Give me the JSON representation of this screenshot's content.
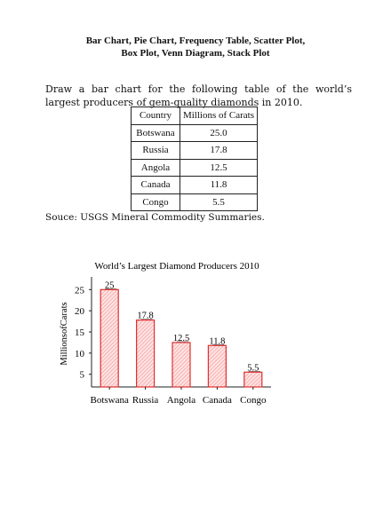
{
  "document": {
    "title_line1": "Bar Chart, Pie Chart, Frequency Table, Scatter Plot,",
    "title_line2": "Box Plot, Venn Diagram, Stack Plot",
    "instruction": "Draw a bar chart for the following table of the world’s largest producers of gem-quality diamonds in 2010.",
    "source": "Souce: USGS Mineral Commodity Summaries."
  },
  "table": {
    "headers": [
      "Country",
      "Millions of Carats"
    ],
    "rows": [
      [
        "Botswana",
        "25.0"
      ],
      [
        "Russia",
        "17.8"
      ],
      [
        "Angola",
        "12.5"
      ],
      [
        "Canada",
        "11.8"
      ],
      [
        "Congo",
        "5.5"
      ]
    ]
  },
  "chart_data": {
    "type": "bar",
    "title": "World’s Largest Diamond Producers 2010",
    "xlabel": "",
    "ylabel": "MillionsofCarats",
    "categories": [
      "Botswana",
      "Russia",
      "Angola",
      "Canada",
      "Congo"
    ],
    "values": [
      25,
      17.8,
      12.5,
      11.8,
      5.5
    ],
    "data_labels": [
      "25",
      "17.8",
      "12.5",
      "11.8",
      "5.5"
    ],
    "yticks": [
      5,
      10,
      15,
      20,
      25
    ],
    "ylim": [
      2,
      28
    ],
    "bar_color": "#e03030",
    "bar_fill": "#ffd6d6",
    "grid": false,
    "legend": "none"
  }
}
